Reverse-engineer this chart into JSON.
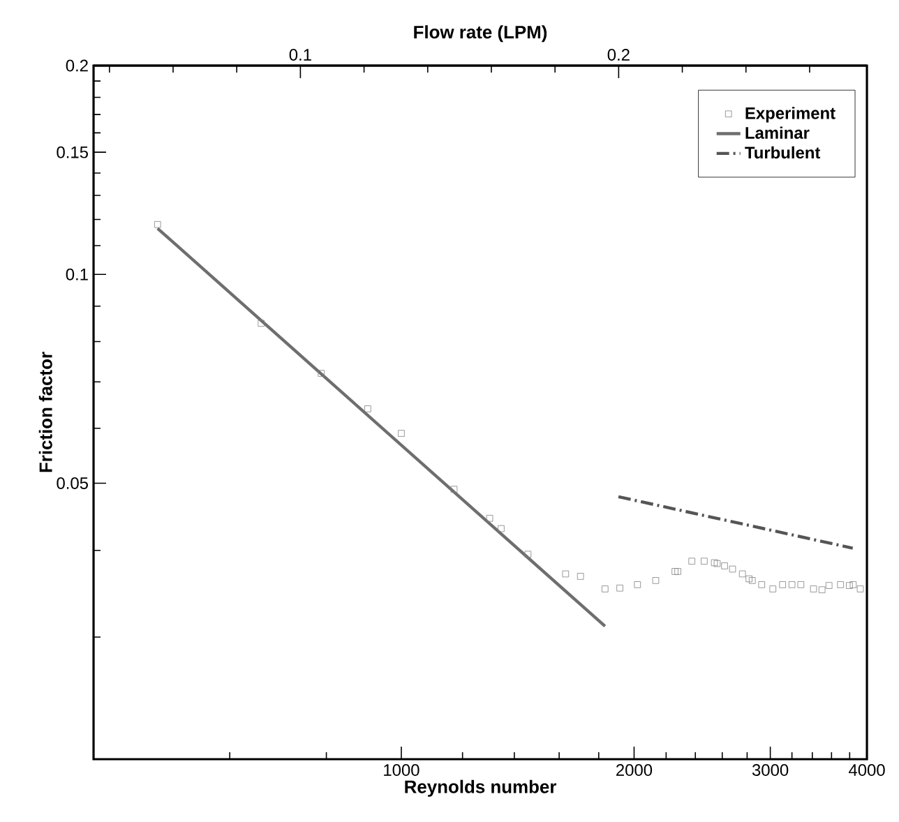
{
  "chart_data": {
    "type": "line",
    "xlabel": "Reynolds number",
    "ylabel": "Friction factor",
    "x2label": "Flow rate (LPM)",
    "log": "xy",
    "legend": "top right",
    "grid": false,
    "xlim": [
      400,
      4000
    ],
    "ylim": [
      0.02,
      0.2
    ],
    "x2lim": [
      0.035,
      0.278
    ],
    "xticks": [
      {
        "value": 600,
        "label": null
      },
      {
        "value": 800,
        "label": null
      },
      1000,
      {
        "value": 1200,
        "label": null
      },
      {
        "value": 1400,
        "label": null
      },
      {
        "value": 1600,
        "label": null
      },
      {
        "value": 1800,
        "label": null
      },
      2000,
      {
        "value": 2200,
        "label": null
      },
      {
        "value": 2400,
        "label": null
      },
      {
        "value": 2600,
        "label": null
      },
      {
        "value": 2800,
        "label": null
      },
      3000,
      {
        "value": 3200,
        "label": null
      },
      {
        "value": 3400,
        "label": null
      },
      {
        "value": 3600,
        "label": null
      },
      {
        "value": 3800,
        "label": null
      },
      4000
    ],
    "yticks": [
      {
        "value": 0.03,
        "label": null
      },
      {
        "value": 0.04,
        "label": null
      },
      0.05,
      {
        "value": 0.06,
        "label": null
      },
      {
        "value": 0.07,
        "label": null
      },
      {
        "value": 0.08,
        "label": null
      },
      {
        "value": 0.09,
        "label": null
      },
      0.1,
      {
        "value": 0.11,
        "label": null
      },
      {
        "value": 0.12,
        "label": null
      },
      {
        "value": 0.13,
        "label": null
      },
      {
        "value": 0.14,
        "label": null
      },
      0.15,
      {
        "value": 0.16,
        "label": null
      },
      {
        "value": 0.17,
        "label": null
      },
      {
        "value": 0.18,
        "label": null
      },
      {
        "value": 0.19,
        "label": null
      },
      0.2
    ],
    "x2ticks": [
      {
        "value": 0.04,
        "label": null
      },
      {
        "value": 0.06,
        "label": null
      },
      {
        "value": 0.08,
        "label": null
      },
      0.1,
      {
        "value": 0.12,
        "label": null
      },
      {
        "value": 0.14,
        "label": null
      },
      {
        "value": 0.16,
        "label": null
      },
      {
        "value": 0.18,
        "label": null
      },
      0.2,
      {
        "value": 0.22,
        "label": null
      },
      {
        "value": 0.24,
        "label": null
      },
      {
        "value": 0.26,
        "label": null
      }
    ],
    "series": [
      {
        "name": "Experiment",
        "type": "scatter",
        "marker": "square",
        "color": "#808080",
        "x": [
          484,
          659,
          788,
          905,
          1000,
          1170,
          1301,
          1346,
          1458,
          1631,
          1705,
          1834,
          1917,
          2020,
          2133,
          2259,
          2278,
          2375,
          2464,
          2540,
          2561,
          2618,
          2681,
          2761,
          2816,
          2843,
          2924,
          3023,
          3112,
          3200,
          3286,
          3412,
          3499,
          3573,
          3698,
          3797,
          3840,
          3922
        ],
        "values": [
          0.118,
          0.085,
          0.072,
          0.064,
          0.059,
          0.049,
          0.0445,
          0.043,
          0.0395,
          0.037,
          0.0367,
          0.0352,
          0.0353,
          0.0357,
          0.0362,
          0.0373,
          0.0373,
          0.0386,
          0.0386,
          0.0384,
          0.0383,
          0.038,
          0.0376,
          0.037,
          0.0364,
          0.0362,
          0.0357,
          0.0352,
          0.0357,
          0.0357,
          0.0357,
          0.0352,
          0.0351,
          0.0356,
          0.0357,
          0.0356,
          0.0357,
          0.0352
        ]
      },
      {
        "name": "Laminar",
        "line_style": "solid",
        "color": "#6e6e6e",
        "x": [
          484,
          1834
        ],
        "values": [
          0.1165,
          0.0311
        ]
      },
      {
        "name": "Turbulent",
        "line_style": "dashdot",
        "color": "#555555",
        "x": [
          1909,
          3835
        ],
        "values": [
          0.0478,
          0.0403
        ]
      }
    ]
  }
}
